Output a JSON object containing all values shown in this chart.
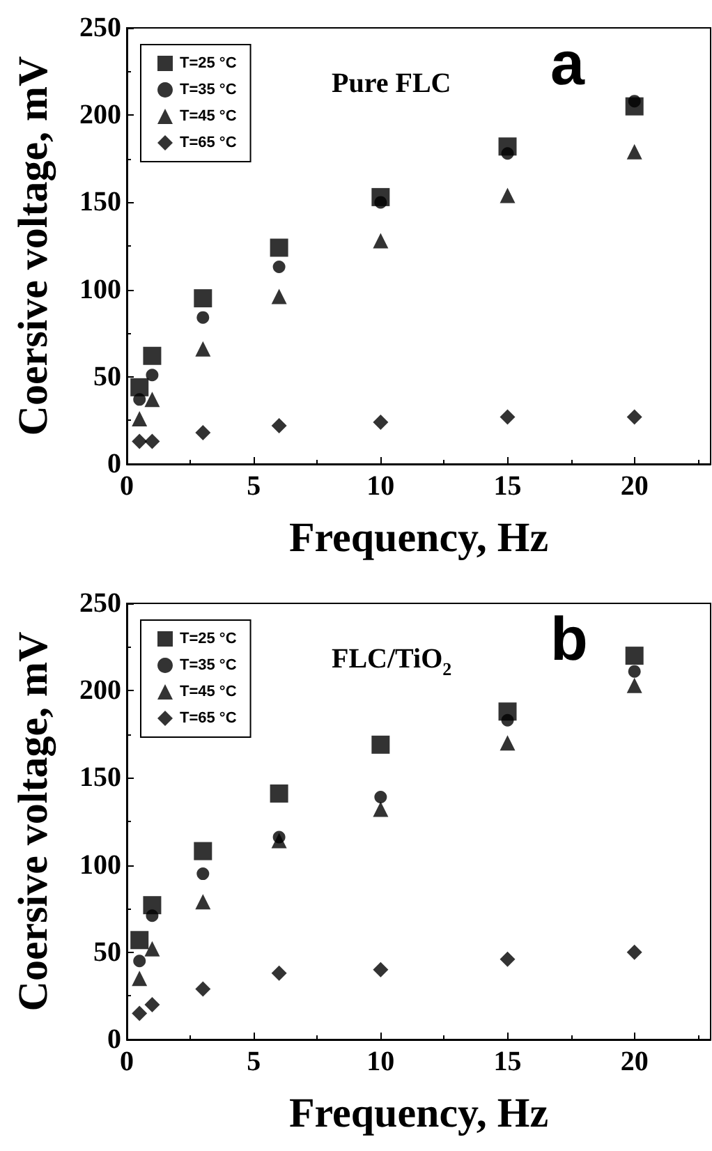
{
  "chart_data": [
    {
      "type": "scatter",
      "xlabel": "Frequency, Hz",
      "ylabel": "Coersive voltage, mV",
      "annotations": [
        "Pure FLC",
        "a"
      ],
      "x": [
        0.5,
        1,
        3,
        6,
        10,
        15,
        20
      ],
      "xlim": [
        0,
        23
      ],
      "xticks": [
        0,
        5,
        10,
        15,
        20
      ],
      "ylim": [
        0,
        250
      ],
      "yticks": [
        0,
        50,
        100,
        150,
        200,
        250
      ],
      "legend": "top left",
      "grid": false,
      "series": [
        {
          "name": "T=25 °C",
          "color": "#000000",
          "marker": "square",
          "values": [
            44,
            62,
            95,
            124,
            153,
            182,
            205
          ]
        },
        {
          "name": "T=35 °C",
          "color": "#000000",
          "marker": "circle",
          "values": [
            37,
            51,
            84,
            113,
            150,
            178,
            208
          ]
        },
        {
          "name": "T=45 °C",
          "color": "#000000",
          "marker": "triangle",
          "values": [
            26,
            37,
            66,
            96,
            128,
            154,
            179
          ]
        },
        {
          "name": "T=65 °C",
          "color": "#000000",
          "marker": "diamond",
          "values": [
            13,
            13,
            18,
            22,
            24,
            27,
            27
          ]
        }
      ]
    },
    {
      "type": "scatter",
      "xlabel": "Frequency, Hz",
      "ylabel": "Coersive voltage, mV",
      "annotations": [
        "FLC/TiO$_{2}$",
        "b"
      ],
      "x": [
        0.5,
        1,
        3,
        6,
        10,
        15,
        20
      ],
      "xlim": [
        0,
        23
      ],
      "xticks": [
        0,
        5,
        10,
        15,
        20
      ],
      "ylim": [
        0,
        250
      ],
      "yticks": [
        0,
        50,
        100,
        150,
        200,
        250
      ],
      "legend": "top left",
      "grid": false,
      "series": [
        {
          "name": "T=25 °C",
          "color": "#000000",
          "marker": "square",
          "values": [
            57,
            77,
            108,
            141,
            169,
            188,
            220
          ]
        },
        {
          "name": "T=35 °C",
          "color": "#000000",
          "marker": "circle",
          "values": [
            45,
            71,
            95,
            116,
            139,
            183,
            211
          ]
        },
        {
          "name": "T=45 °C",
          "color": "#000000",
          "marker": "triangle",
          "values": [
            35,
            52,
            79,
            114,
            132,
            170,
            203
          ]
        },
        {
          "name": "T=65 °C",
          "color": "#000000",
          "marker": "diamond",
          "values": [
            15,
            20,
            29,
            38,
            40,
            46,
            50
          ]
        }
      ]
    }
  ]
}
